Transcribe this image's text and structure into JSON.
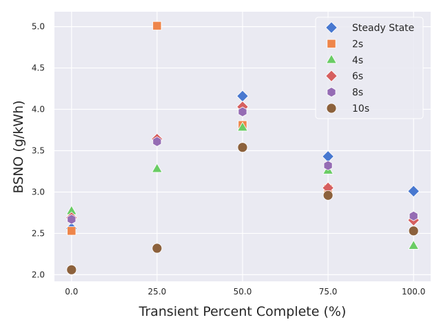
{
  "chart_data": {
    "type": "scatter",
    "xlabel": "Transient Percent Complete (%)",
    "ylabel": "BSNO (g/kWh)",
    "xlim": [
      -5,
      105
    ],
    "ylim": [
      1.92,
      5.18
    ],
    "x_ticks": [
      0,
      25,
      50,
      75,
      100
    ],
    "x_tick_labels": [
      "0.0",
      "25.0",
      "50.0",
      "75.0",
      "100.0"
    ],
    "y_ticks": [
      2.0,
      2.5,
      3.0,
      3.5,
      4.0,
      4.5,
      5.0
    ],
    "y_tick_labels": [
      "2.0",
      "2.5",
      "3.0",
      "3.5",
      "4.0",
      "4.5",
      "5.0"
    ],
    "grid": true,
    "legend_position": "top-right",
    "background": "#eaeaf2",
    "series": [
      {
        "name": "Steady State",
        "marker": "diamond",
        "color": "#4878d0",
        "points": [
          [
            0,
            2.56
          ],
          [
            25,
            3.64
          ],
          [
            50,
            4.16
          ],
          [
            75,
            3.43
          ],
          [
            100,
            3.01
          ]
        ]
      },
      {
        "name": "2s",
        "marker": "square",
        "color": "#ee854a",
        "points": [
          [
            0,
            2.53
          ],
          [
            25,
            5.01
          ],
          [
            50,
            3.81
          ],
          [
            75,
            3.04
          ],
          [
            100,
            2.68
          ]
        ]
      },
      {
        "name": "4s",
        "marker": "triangle",
        "color": "#6acc64",
        "points": [
          [
            0,
            2.77
          ],
          [
            25,
            3.28
          ],
          [
            50,
            3.78
          ],
          [
            75,
            3.26
          ],
          [
            100,
            2.35
          ]
        ]
      },
      {
        "name": "6s",
        "marker": "diamond",
        "color": "#d65f5f",
        "points": [
          [
            0,
            2.69
          ],
          [
            25,
            3.64
          ],
          [
            50,
            4.03
          ],
          [
            75,
            3.05
          ],
          [
            100,
            2.66
          ]
        ]
      },
      {
        "name": "8s",
        "marker": "hexagon",
        "color": "#956cb4",
        "points": [
          [
            0,
            2.67
          ],
          [
            25,
            3.61
          ],
          [
            50,
            3.97
          ],
          [
            75,
            3.32
          ],
          [
            100,
            2.71
          ]
        ]
      },
      {
        "name": "10s",
        "marker": "circle",
        "color": "#8c613c",
        "points": [
          [
            0,
            2.06
          ],
          [
            25,
            2.32
          ],
          [
            50,
            3.54
          ],
          [
            75,
            2.96
          ],
          [
            100,
            2.53
          ]
        ]
      }
    ]
  }
}
